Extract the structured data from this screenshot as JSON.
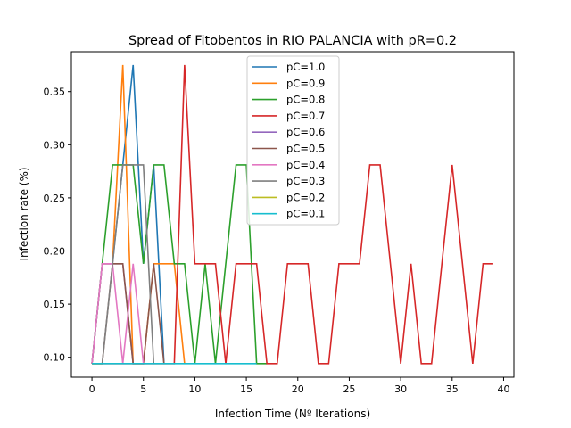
{
  "chart_data": {
    "type": "line",
    "title": "Spread of Fitobentos in RIO PALANCIA with pR=0.2",
    "xlabel": "Infection Time (Nº Iterations)",
    "ylabel": "Infection rate (%)",
    "xlim": [
      -2,
      41
    ],
    "ylim": [
      0.0813,
      0.3875
    ],
    "xticks": [
      0,
      5,
      10,
      15,
      20,
      25,
      30,
      35,
      40
    ],
    "yticks": [
      0.1,
      0.15,
      0.2,
      0.25,
      0.3,
      0.35
    ],
    "xtick_labels": [
      "0",
      "5",
      "10",
      "15",
      "20",
      "25",
      "30",
      "35",
      "40"
    ],
    "ytick_labels": [
      "0.10",
      "0.15",
      "0.20",
      "0.25",
      "0.30",
      "0.35"
    ],
    "grid": false,
    "legend_position": "top-center",
    "series": [
      {
        "name": "pC=1.0",
        "color": "#1f77b4",
        "x": [
          0,
          1,
          2,
          3,
          4,
          5,
          6,
          7
        ],
        "y": [
          0.094,
          0.188,
          0.188,
          0.281,
          0.375,
          0.188,
          0.281,
          0.094
        ]
      },
      {
        "name": "pC=0.9",
        "color": "#ff7f0e",
        "x": [
          0,
          1,
          2,
          3,
          4,
          5,
          6,
          7,
          8,
          9
        ],
        "y": [
          0.094,
          0.188,
          0.188,
          0.375,
          0.094,
          0.094,
          0.188,
          0.188,
          0.188,
          0.094
        ]
      },
      {
        "name": "pC=0.8",
        "color": "#2ca02c",
        "x": [
          0,
          1,
          2,
          3,
          4,
          5,
          6,
          7,
          8,
          9,
          10,
          11,
          12,
          13,
          14,
          15,
          16,
          17
        ],
        "y": [
          0.094,
          0.188,
          0.281,
          0.281,
          0.281,
          0.188,
          0.281,
          0.281,
          0.188,
          0.188,
          0.094,
          0.188,
          0.094,
          0.188,
          0.281,
          0.281,
          0.094,
          0.094
        ]
      },
      {
        "name": "pC=0.7",
        "color": "#d62728",
        "x": [
          0,
          1,
          2,
          3,
          4,
          5,
          6,
          7,
          8,
          9,
          10,
          11,
          12,
          13,
          14,
          15,
          16,
          17,
          18,
          19,
          20,
          21,
          22,
          23,
          24,
          25,
          26,
          27,
          28,
          29,
          30,
          31,
          32,
          33,
          34,
          35,
          36,
          37,
          38,
          39
        ],
        "y": [
          0.094,
          0.094,
          0.094,
          0.094,
          0.094,
          0.094,
          0.094,
          0.094,
          0.094,
          0.375,
          0.188,
          0.188,
          0.188,
          0.094,
          0.188,
          0.188,
          0.188,
          0.094,
          0.094,
          0.188,
          0.188,
          0.188,
          0.094,
          0.094,
          0.188,
          0.188,
          0.188,
          0.281,
          0.281,
          0.188,
          0.094,
          0.188,
          0.094,
          0.094,
          0.188,
          0.281,
          0.188,
          0.094,
          0.188,
          0.188
        ]
      },
      {
        "name": "pC=0.6",
        "color": "#9467bd",
        "x": [
          0,
          1,
          2,
          3,
          4
        ],
        "y": [
          0.094,
          0.188,
          0.188,
          0.188,
          0.094
        ]
      },
      {
        "name": "pC=0.5",
        "color": "#8c564b",
        "x": [
          0,
          1,
          2,
          3,
          4,
          5,
          6,
          7
        ],
        "y": [
          0.094,
          0.094,
          0.188,
          0.188,
          0.094,
          0.094,
          0.188,
          0.094
        ]
      },
      {
        "name": "pC=0.4",
        "color": "#e377c2",
        "x": [
          0,
          1,
          2,
          3,
          4,
          5
        ],
        "y": [
          0.094,
          0.188,
          0.188,
          0.094,
          0.188,
          0.094
        ]
      },
      {
        "name": "pC=0.3",
        "color": "#7f7f7f",
        "x": [
          0,
          1,
          2,
          3,
          4,
          5,
          6
        ],
        "y": [
          0.094,
          0.094,
          0.188,
          0.281,
          0.281,
          0.281,
          0.094
        ]
      },
      {
        "name": "pC=0.2",
        "color": "#bcbd22",
        "x": [
          0,
          1
        ],
        "y": [
          0.094,
          0.094
        ]
      },
      {
        "name": "pC=0.1",
        "color": "#17becf",
        "x": [
          0,
          1,
          2,
          3,
          4,
          5,
          6,
          7,
          8,
          9,
          10,
          11,
          12,
          13,
          14,
          15,
          16
        ],
        "y": [
          0.094,
          0.094,
          0.094,
          0.094,
          0.094,
          0.094,
          0.094,
          0.094,
          0.094,
          0.094,
          0.094,
          0.094,
          0.094,
          0.094,
          0.094,
          0.094,
          0.094
        ]
      }
    ]
  }
}
